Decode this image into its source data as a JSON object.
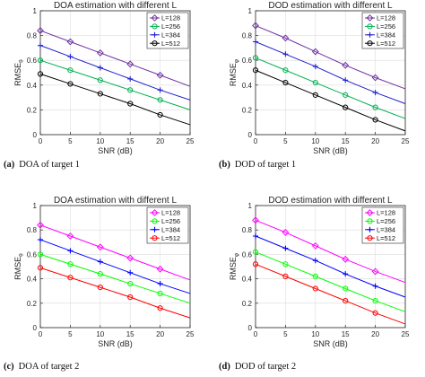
{
  "figure": {
    "panels": [
      {
        "id": "a",
        "caption_tag": "(a)",
        "caption_text": "DOA of target 1",
        "chart_data": {
          "type": "line",
          "title": "DOA estimation with different L",
          "xlabel": "SNR (dB)",
          "ylabel_main": "RMSE",
          "ylabel_sub": "θ",
          "xlim": [
            0,
            25
          ],
          "ylim": [
            0,
            1
          ],
          "xticks": [
            0,
            5,
            10,
            15,
            20,
            25
          ],
          "yticks": [
            0,
            0.2,
            0.4,
            0.6,
            0.8,
            1
          ],
          "grid": true,
          "legend": "top-right",
          "x": [
            0,
            5,
            10,
            15,
            20
          ],
          "series": [
            {
              "name": "L=128",
              "color": "#7030a0",
              "marker": "diamond",
              "values": [
                0.84,
                0.75,
                0.66,
                0.57,
                0.48
              ],
              "line_end": [
                25,
                0.39
              ]
            },
            {
              "name": "L=256",
              "color": "#00b050",
              "marker": "circle",
              "values": [
                0.6,
                0.52,
                0.44,
                0.36,
                0.28
              ],
              "line_end": [
                25,
                0.2
              ]
            },
            {
              "name": "L=384",
              "color": "#2020d0",
              "marker": "plus",
              "values": [
                0.72,
                0.63,
                0.54,
                0.45,
                0.36
              ],
              "line_end": [
                25,
                0.28
              ]
            },
            {
              "name": "L=512",
              "color": "#000000",
              "marker": "circle",
              "values": [
                0.49,
                0.41,
                0.33,
                0.25,
                0.16
              ],
              "line_end": [
                25,
                0.08
              ]
            }
          ]
        }
      },
      {
        "id": "b",
        "caption_tag": "(b)",
        "caption_text": "DOD of target 1",
        "chart_data": {
          "type": "line",
          "title": "DOD estimation with different L",
          "xlabel": "SNR (dB)",
          "ylabel_main": "RMSE",
          "ylabel_sub": "φ",
          "xlim": [
            0,
            25
          ],
          "ylim": [
            0,
            1
          ],
          "xticks": [
            0,
            5,
            10,
            15,
            20,
            25
          ],
          "yticks": [
            0,
            0.2,
            0.4,
            0.6,
            0.8,
            1
          ],
          "grid": true,
          "legend": "top-right",
          "x": [
            0,
            5,
            10,
            15,
            20
          ],
          "series": [
            {
              "name": "L=128",
              "color": "#7030a0",
              "marker": "diamond",
              "values": [
                0.88,
                0.78,
                0.67,
                0.56,
                0.46
              ],
              "line_end": [
                25,
                0.37
              ]
            },
            {
              "name": "L=256",
              "color": "#00b050",
              "marker": "circle",
              "values": [
                0.62,
                0.52,
                0.42,
                0.32,
                0.22
              ],
              "line_end": [
                25,
                0.13
              ]
            },
            {
              "name": "L=384",
              "color": "#2020d0",
              "marker": "plus",
              "values": [
                0.75,
                0.65,
                0.55,
                0.44,
                0.34
              ],
              "line_end": [
                25,
                0.25
              ]
            },
            {
              "name": "L=512",
              "color": "#000000",
              "marker": "circle",
              "values": [
                0.52,
                0.42,
                0.32,
                0.22,
                0.12
              ],
              "line_end": [
                25,
                0.03
              ]
            }
          ]
        }
      },
      {
        "id": "c",
        "caption_tag": "(c)",
        "caption_text": "DOA of target 2",
        "chart_data": {
          "type": "line",
          "title": "DOA estimation with different L",
          "xlabel": "SNR (dB)",
          "ylabel_main": "RMSE",
          "ylabel_sub": "θ",
          "xlim": [
            0,
            25
          ],
          "ylim": [
            0,
            1
          ],
          "xticks": [
            0,
            5,
            10,
            15,
            20,
            25
          ],
          "yticks": [
            0,
            0.2,
            0.4,
            0.6,
            0.8,
            1
          ],
          "grid": true,
          "legend": "top-right",
          "x": [
            0,
            5,
            10,
            15,
            20
          ],
          "series": [
            {
              "name": "L=128",
              "color": "#ff00ff",
              "marker": "diamond",
              "values": [
                0.84,
                0.75,
                0.66,
                0.57,
                0.48
              ],
              "line_end": [
                25,
                0.39
              ]
            },
            {
              "name": "L=256",
              "color": "#00ff00",
              "marker": "circle",
              "values": [
                0.6,
                0.52,
                0.44,
                0.36,
                0.28
              ],
              "line_end": [
                25,
                0.2
              ]
            },
            {
              "name": "L=384",
              "color": "#0000ff",
              "marker": "plus",
              "values": [
                0.72,
                0.63,
                0.54,
                0.45,
                0.36
              ],
              "line_end": [
                25,
                0.28
              ]
            },
            {
              "name": "L=512",
              "color": "#ff0000",
              "marker": "circle",
              "values": [
                0.49,
                0.41,
                0.33,
                0.25,
                0.16
              ],
              "line_end": [
                25,
                0.08
              ]
            }
          ]
        }
      },
      {
        "id": "d",
        "caption_tag": "(d)",
        "caption_text": "DOD of target 2",
        "chart_data": {
          "type": "line",
          "title": "DOD estimation with different L",
          "xlabel": "SNR (dB)",
          "ylabel_main": "RMSE",
          "ylabel_sub": "φ",
          "xlim": [
            0,
            25
          ],
          "ylim": [
            0,
            1
          ],
          "xticks": [
            0,
            5,
            10,
            15,
            20,
            25
          ],
          "yticks": [
            0,
            0.2,
            0.4,
            0.6,
            0.8,
            1
          ],
          "grid": true,
          "legend": "top-right",
          "x": [
            0,
            5,
            10,
            15,
            20
          ],
          "series": [
            {
              "name": "L=128",
              "color": "#ff00ff",
              "marker": "diamond",
              "values": [
                0.88,
                0.78,
                0.67,
                0.56,
                0.46
              ],
              "line_end": [
                25,
                0.37
              ]
            },
            {
              "name": "L=256",
              "color": "#00ff00",
              "marker": "circle",
              "values": [
                0.62,
                0.52,
                0.42,
                0.32,
                0.22
              ],
              "line_end": [
                25,
                0.13
              ]
            },
            {
              "name": "L=384",
              "color": "#0000ff",
              "marker": "plus",
              "values": [
                0.75,
                0.65,
                0.55,
                0.44,
                0.34
              ],
              "line_end": [
                25,
                0.25
              ]
            },
            {
              "name": "L=512",
              "color": "#ff0000",
              "marker": "circle",
              "values": [
                0.52,
                0.42,
                0.32,
                0.22,
                0.12
              ],
              "line_end": [
                25,
                0.03
              ]
            }
          ]
        }
      }
    ]
  }
}
